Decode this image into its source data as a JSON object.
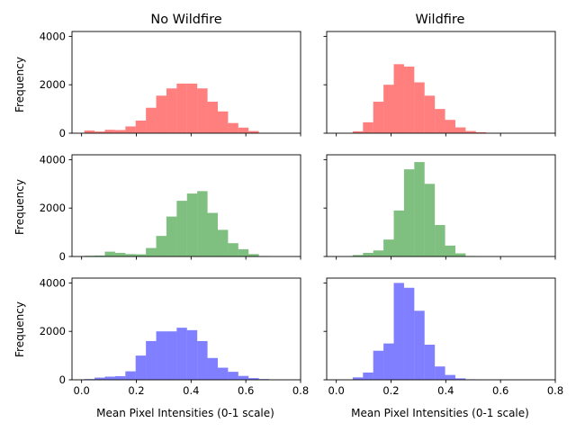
{
  "chart_data": {
    "type": "bar",
    "columns": [
      "No Wildfire",
      "Wildfire"
    ],
    "rows": [
      "red",
      "green",
      "blue"
    ],
    "xlabel": "Mean Pixel Intensities (0-1 scale)",
    "ylabel": "Frequency",
    "xlim": [
      -0.035,
      0.8
    ],
    "ylim": [
      0,
      4200
    ],
    "xticks": [
      0.0,
      0.2,
      0.4,
      0.6,
      0.8
    ],
    "xtick_labels": [
      "0.0",
      "0.2",
      "0.4",
      "0.6",
      "0.8"
    ],
    "yticks": [
      0,
      2000,
      4000
    ],
    "ytick_labels": [
      "0",
      "2000",
      "4000"
    ],
    "sharex": true,
    "sharey": true,
    "bar_alpha": 0.5,
    "bin_width": 0.0375,
    "panels": [
      {
        "row": 0,
        "col": 0,
        "color": "#ff0000",
        "bin_start": 0.01,
        "values": [
          110,
          70,
          140,
          130,
          280,
          520,
          1050,
          1550,
          1850,
          2050,
          2050,
          1850,
          1300,
          900,
          420,
          230,
          90,
          10,
          0,
          0
        ]
      },
      {
        "row": 0,
        "col": 1,
        "color": "#ff0000",
        "bin_start": 0.06,
        "values": [
          80,
          450,
          1300,
          2000,
          2850,
          2750,
          2100,
          1550,
          1000,
          550,
          240,
          90,
          40,
          0,
          0,
          0,
          0,
          0,
          0,
          0
        ]
      },
      {
        "row": 1,
        "col": 0,
        "color": "#008000",
        "bin_start": 0.01,
        "values": [
          30,
          40,
          200,
          150,
          100,
          90,
          350,
          850,
          1650,
          2300,
          2600,
          2700,
          1800,
          1100,
          550,
          300,
          100,
          20,
          0,
          0
        ]
      },
      {
        "row": 1,
        "col": 1,
        "color": "#008000",
        "bin_start": 0.06,
        "values": [
          60,
          150,
          250,
          700,
          1900,
          3600,
          3900,
          3000,
          1300,
          450,
          130,
          20,
          0,
          0,
          0,
          0,
          0,
          0,
          0,
          0
        ]
      },
      {
        "row": 2,
        "col": 0,
        "color": "#0000ff",
        "bin_start": 0.01,
        "values": [
          30,
          90,
          130,
          150,
          350,
          1000,
          1600,
          2000,
          2000,
          2150,
          2050,
          1600,
          900,
          500,
          330,
          160,
          70,
          30,
          0,
          0
        ]
      },
      {
        "row": 2,
        "col": 1,
        "color": "#0000ff",
        "bin_start": 0.06,
        "values": [
          100,
          300,
          1200,
          1500,
          4000,
          3800,
          2850,
          1450,
          550,
          200,
          60,
          20,
          0,
          0,
          0,
          0,
          0,
          0,
          0,
          0
        ]
      }
    ]
  }
}
